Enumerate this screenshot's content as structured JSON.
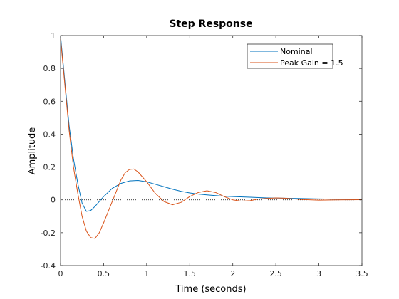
{
  "chart_data": {
    "type": "line",
    "title": "Step Response",
    "xlabel": "Time (seconds)",
    "ylabel": "Amplitude",
    "xlim": [
      0,
      3.5
    ],
    "ylim": [
      -0.4,
      1
    ],
    "xticks": [
      0,
      0.5,
      1,
      1.5,
      2,
      2.5,
      3,
      3.5
    ],
    "xtick_labels": [
      "0",
      "0.5",
      "1",
      "1.5",
      "2",
      "2.5",
      "3",
      "3.5"
    ],
    "yticks": [
      -0.4,
      -0.2,
      0,
      0.2,
      0.4,
      0.6,
      0.8,
      1
    ],
    "ytick_labels": [
      "-0.4",
      "-0.2",
      "0",
      "0.2",
      "0.4",
      "0.6",
      "0.8",
      "1"
    ],
    "grid": false,
    "reference_line": {
      "y": 0,
      "style": "dotted"
    },
    "legend": {
      "position": "top-right"
    },
    "series": [
      {
        "name": "Nominal",
        "color": "#0072BD",
        "points": [
          [
            0,
            1.0
          ],
          [
            0.05,
            0.72
          ],
          [
            0.1,
            0.45
          ],
          [
            0.15,
            0.25
          ],
          [
            0.2,
            0.1
          ],
          [
            0.25,
            -0.02
          ],
          [
            0.3,
            -0.07
          ],
          [
            0.35,
            -0.065
          ],
          [
            0.4,
            -0.04
          ],
          [
            0.5,
            0.02
          ],
          [
            0.6,
            0.07
          ],
          [
            0.7,
            0.1
          ],
          [
            0.8,
            0.115
          ],
          [
            0.9,
            0.118
          ],
          [
            1.0,
            0.11
          ],
          [
            1.1,
            0.095
          ],
          [
            1.2,
            0.08
          ],
          [
            1.3,
            0.065
          ],
          [
            1.4,
            0.052
          ],
          [
            1.5,
            0.042
          ],
          [
            1.6,
            0.035
          ],
          [
            1.7,
            0.03
          ],
          [
            1.8,
            0.026
          ],
          [
            1.9,
            0.022
          ],
          [
            2.0,
            0.02
          ],
          [
            2.2,
            0.016
          ],
          [
            2.4,
            0.012
          ],
          [
            2.6,
            0.01
          ],
          [
            2.8,
            0.008
          ],
          [
            3.0,
            0.006
          ],
          [
            3.2,
            0.004
          ],
          [
            3.5,
            0.003
          ]
        ]
      },
      {
        "name": "Peak Gain = 1.5",
        "color": "#D95319",
        "points": [
          [
            0,
            0.98
          ],
          [
            0.05,
            0.7
          ],
          [
            0.1,
            0.42
          ],
          [
            0.15,
            0.2
          ],
          [
            0.2,
            0.04
          ],
          [
            0.25,
            -0.1
          ],
          [
            0.3,
            -0.19
          ],
          [
            0.35,
            -0.23
          ],
          [
            0.4,
            -0.235
          ],
          [
            0.45,
            -0.2
          ],
          [
            0.5,
            -0.14
          ],
          [
            0.6,
            -0.01
          ],
          [
            0.7,
            0.12
          ],
          [
            0.75,
            0.165
          ],
          [
            0.8,
            0.185
          ],
          [
            0.85,
            0.188
          ],
          [
            0.9,
            0.17
          ],
          [
            1.0,
            0.11
          ],
          [
            1.1,
            0.04
          ],
          [
            1.2,
            -0.01
          ],
          [
            1.3,
            -0.03
          ],
          [
            1.4,
            -0.015
          ],
          [
            1.5,
            0.02
          ],
          [
            1.6,
            0.045
          ],
          [
            1.7,
            0.055
          ],
          [
            1.8,
            0.045
          ],
          [
            1.9,
            0.02
          ],
          [
            2.0,
            0.0
          ],
          [
            2.1,
            -0.008
          ],
          [
            2.2,
            -0.005
          ],
          [
            2.3,
            0.005
          ],
          [
            2.5,
            0.012
          ],
          [
            2.6,
            0.01
          ],
          [
            2.8,
            0.002
          ],
          [
            3.0,
            -0.002
          ],
          [
            3.2,
            0.0
          ],
          [
            3.5,
            0.001
          ]
        ]
      }
    ]
  }
}
